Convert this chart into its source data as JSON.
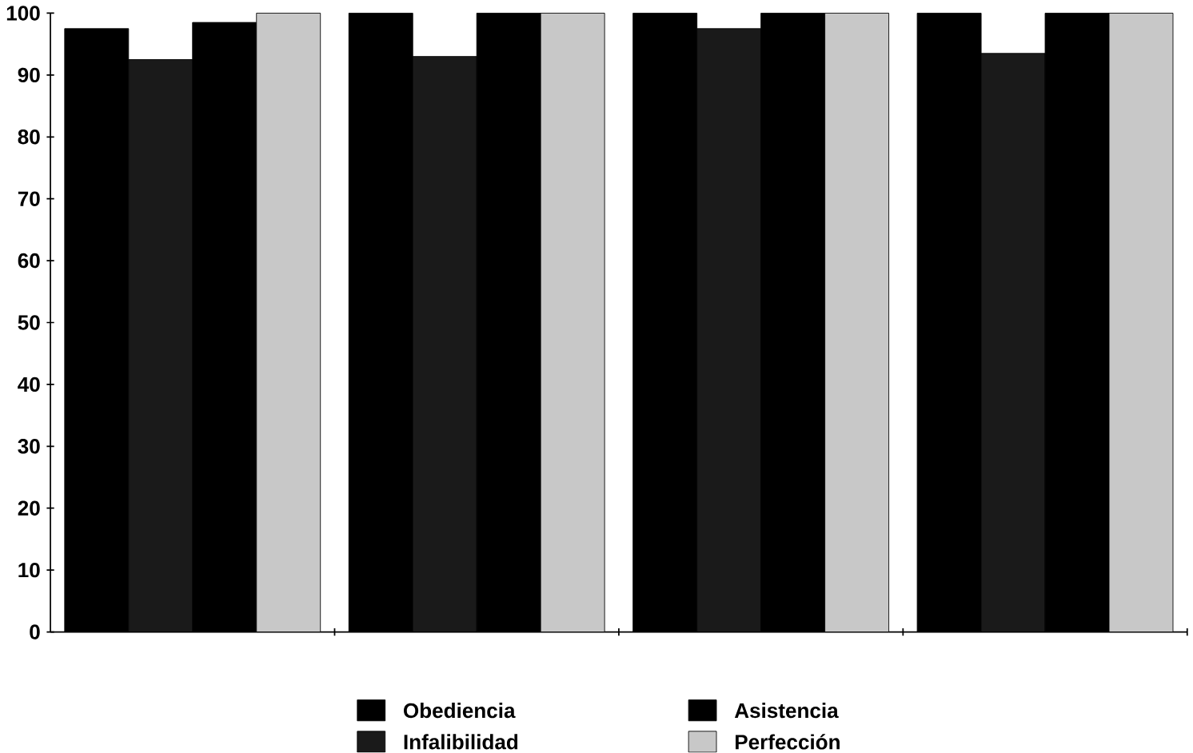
{
  "chart_data": {
    "type": "bar",
    "categories": [
      null,
      null,
      null,
      null
    ],
    "series": [
      {
        "name": "Obediencia",
        "color": "#000000",
        "values": [
          97.5,
          100,
          100,
          100
        ]
      },
      {
        "name": "Infalibilidad",
        "color": "#1a1a1a",
        "values": [
          92.5,
          93,
          97.5,
          93.5
        ]
      },
      {
        "name": "Asistencia",
        "color": "#000000",
        "values": [
          98.5,
          100,
          100,
          100
        ]
      },
      {
        "name": "Perfección",
        "color": "#c8c8c8",
        "values": [
          100,
          100,
          100,
          100
        ]
      }
    ],
    "ylim": [
      0,
      100
    ],
    "yticks": [
      0,
      10,
      20,
      30,
      40,
      50,
      60,
      70,
      80,
      90,
      100
    ],
    "legend": "bottom",
    "grid": false
  }
}
